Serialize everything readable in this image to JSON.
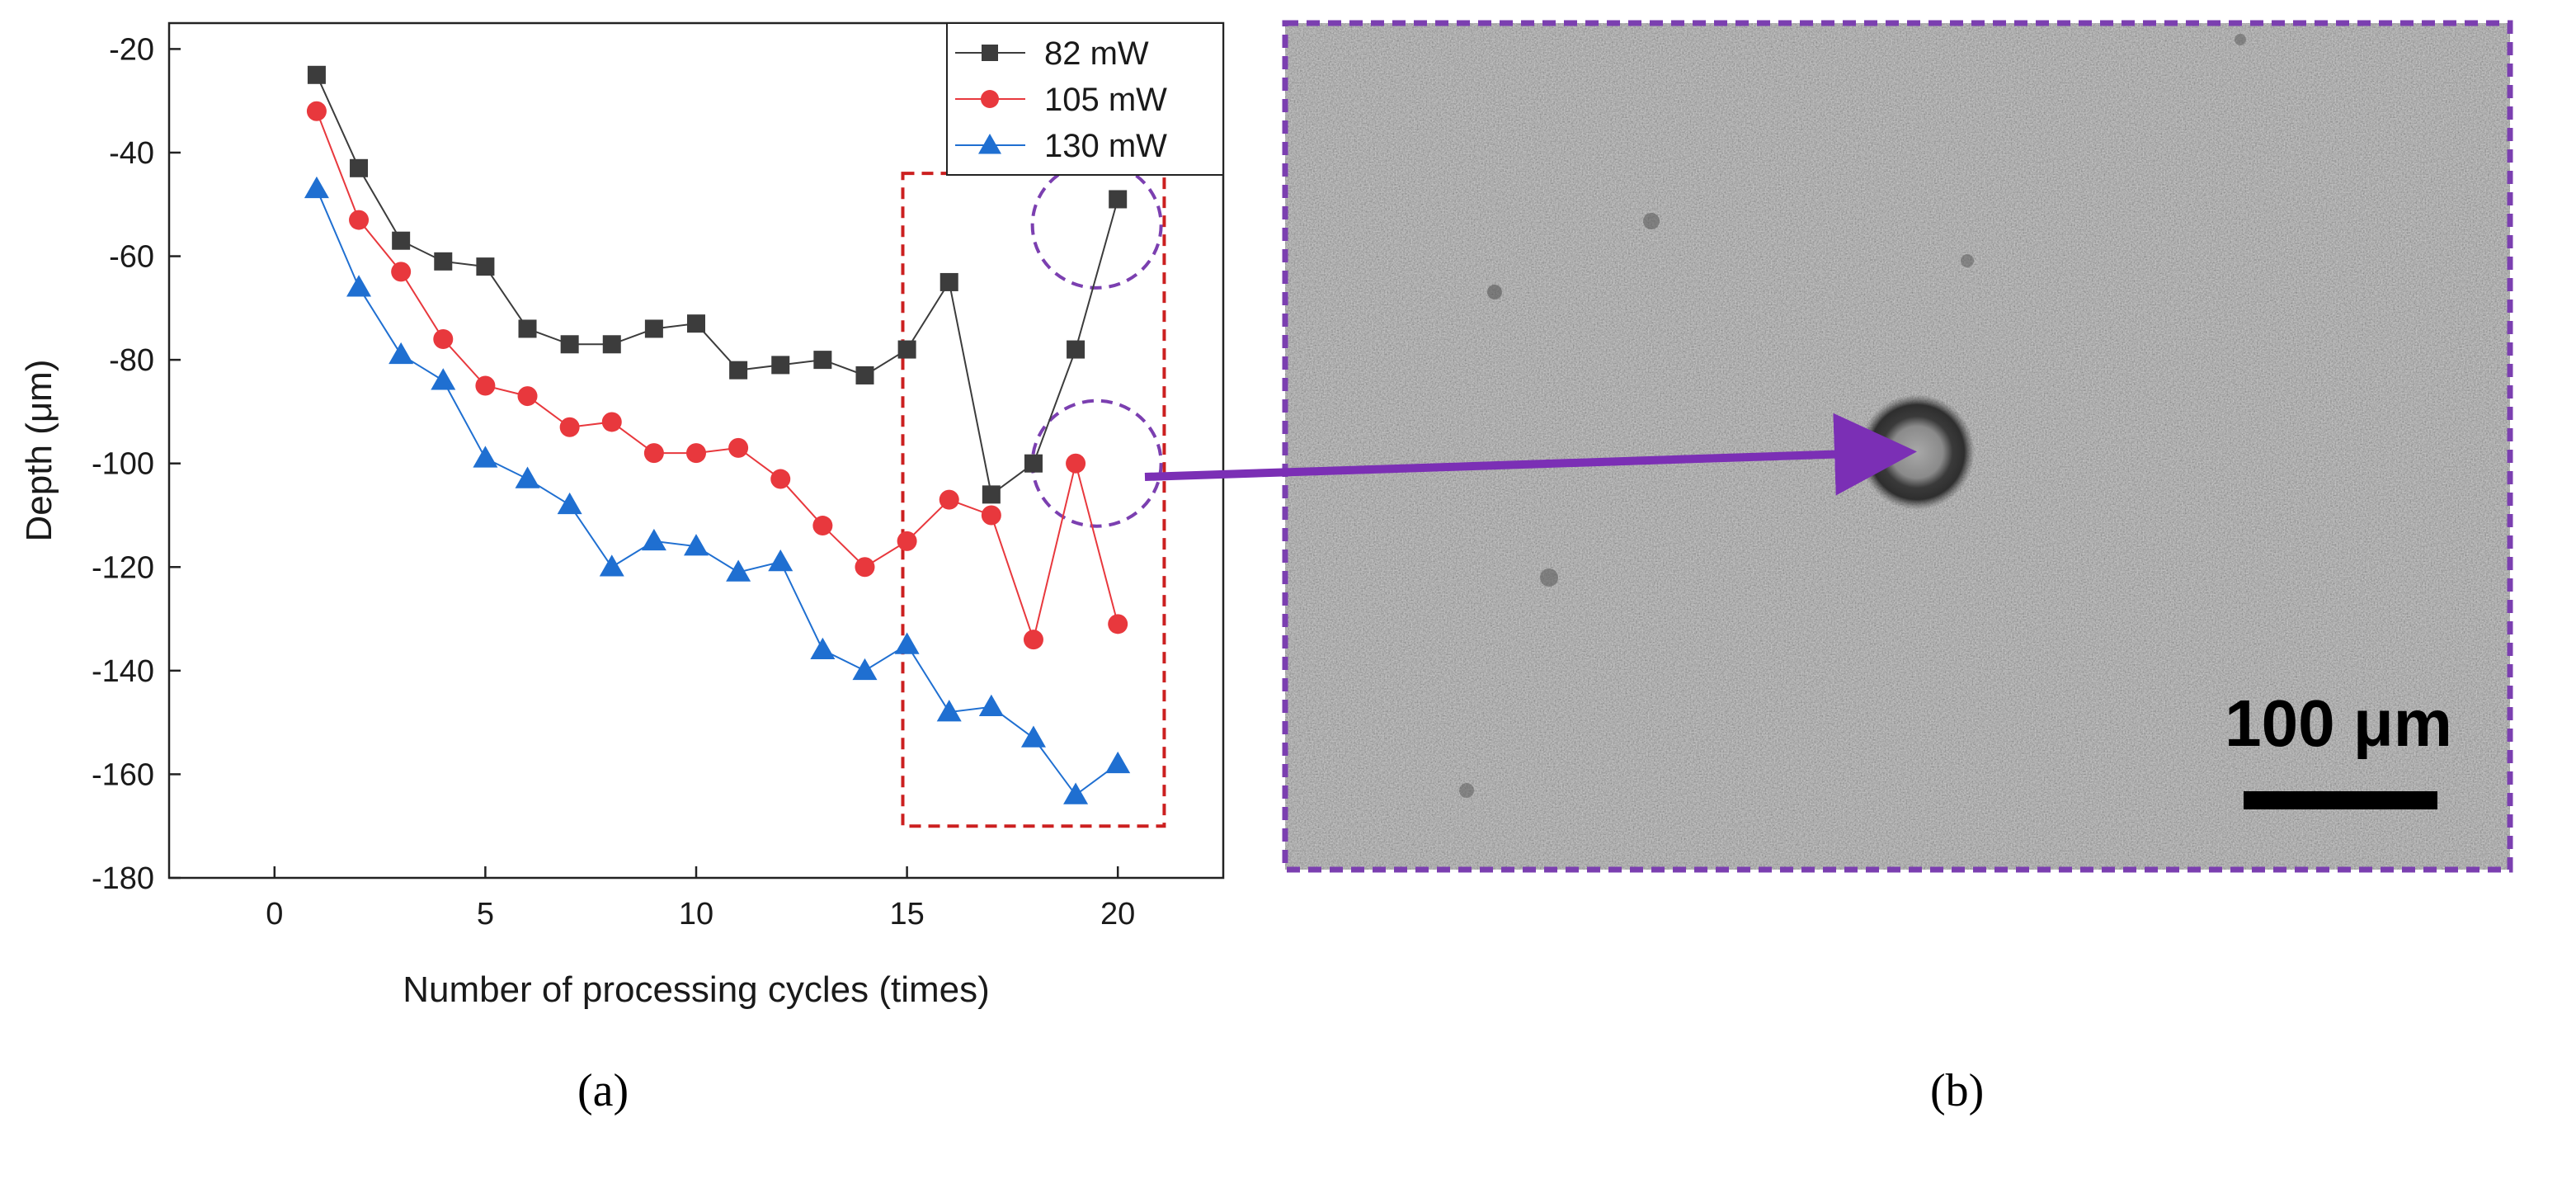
{
  "chart_data": {
    "type": "line",
    "xlabel": "Number of processing cycles (times)",
    "ylabel": "Depth (μm)",
    "xlim": [
      -2.5,
      22.5
    ],
    "ylim": [
      -180,
      -15
    ],
    "xticks": [
      0,
      5,
      10,
      15,
      20
    ],
    "yticks": [
      -20,
      -40,
      -60,
      -80,
      -100,
      -120,
      -140,
      -160,
      -180
    ],
    "x": [
      1,
      2,
      3,
      4,
      5,
      6,
      7,
      8,
      9,
      10,
      11,
      12,
      13,
      14,
      15,
      16,
      17,
      18,
      19,
      20
    ],
    "series": [
      {
        "name": "82 mW",
        "color": "#3c3c3c",
        "marker": "square",
        "values": [
          -25,
          -43,
          -57,
          -61,
          -62,
          -74,
          -77,
          -77,
          -74,
          -73,
          -82,
          -81,
          -80,
          -83,
          -78,
          -65,
          -106,
          -100,
          -78,
          -49
        ]
      },
      {
        "name": "105 mW",
        "color": "#e8383d",
        "marker": "circle",
        "values": [
          -32,
          -53,
          -63,
          -76,
          -85,
          -87,
          -93,
          -92,
          -98,
          -98,
          -97,
          -103,
          -112,
          -120,
          -115,
          -107,
          -110,
          -134,
          -100,
          -131
        ]
      },
      {
        "name": "130 mW",
        "color": "#1f6fd1",
        "marker": "triangle",
        "values": [
          -47,
          -66,
          -79,
          -84,
          -99,
          -103,
          -108,
          -120,
          -115,
          -116,
          -121,
          -119,
          -136,
          -140,
          -135,
          -148,
          -147,
          -153,
          -164,
          -158
        ]
      }
    ],
    "legend_position": "top-right",
    "annotations": {
      "highlight_box": {
        "x_range": [
          14.9,
          21.1
        ],
        "y_range": [
          -170,
          -44
        ],
        "color": "#cc2020"
      },
      "circles": [
        {
          "x": 19.5,
          "y": -54
        },
        {
          "x": 19.5,
          "y": -100
        }
      ],
      "circle_color": "#7b3fb0"
    }
  },
  "panel_labels": {
    "a": "(a)",
    "b": "(b)"
  },
  "micrograph": {
    "scale_bar_label": "100 μm",
    "border_color": "#7b3fb0",
    "arrow_color": "#7b2fb5"
  }
}
